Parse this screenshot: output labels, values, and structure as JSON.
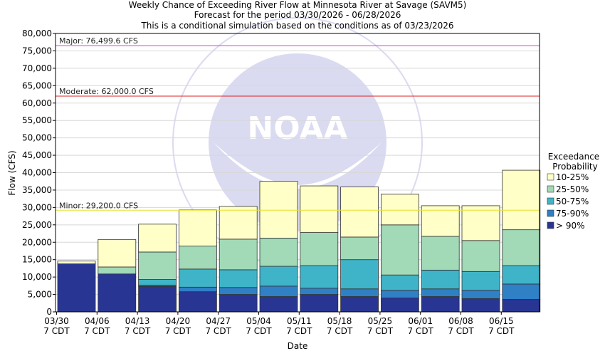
{
  "chart_data": {
    "type": "bar",
    "title": [
      "Weekly Chance of Exceeding River Flow at Minnesota River at Savage (SAVM5)",
      "Forecast for the period 03/30/2026 - 06/28/2026",
      "This is a conditional simulation based on the conditions as of 03/23/2026"
    ],
    "xlabel": "Date",
    "ylabel": "Flow (CFS)",
    "ylim": [
      0,
      80000
    ],
    "yticks": [
      "0",
      "5,000",
      "10,000",
      "15,000",
      "20,000",
      "25,000",
      "30,000",
      "35,000",
      "40,000",
      "45,000",
      "50,000",
      "55,000",
      "60,000",
      "65,000",
      "70,000",
      "75,000",
      "80,000"
    ],
    "categories": [
      [
        "03/30",
        "7 CDT"
      ],
      [
        "04/06",
        "7 CDT"
      ],
      [
        "04/13",
        "7 CDT"
      ],
      [
        "04/20",
        "7 CDT"
      ],
      [
        "04/27",
        "7 CDT"
      ],
      [
        "05/04",
        "7 CDT"
      ],
      [
        "05/11",
        "7 CDT"
      ],
      [
        "05/18",
        "7 CDT"
      ],
      [
        "05/25",
        "7 CDT"
      ],
      [
        "06/01",
        "7 CDT"
      ],
      [
        "06/08",
        "7 CDT"
      ],
      [
        "06/15",
        "7 CDT"
      ]
    ],
    "grid": true,
    "stacked": true,
    "legend": {
      "title": [
        "Exceedance",
        "Probability"
      ],
      "position": "right"
    },
    "series": [
      {
        "name": "> 90%",
        "color": "#283593",
        "values": [
          13800,
          10900,
          7300,
          5800,
          5000,
          4400,
          5000,
          4400,
          4000,
          4400,
          3800,
          3600
        ]
      },
      {
        "name": "75-90%",
        "color": "#2f80c4",
        "values": [
          0,
          0,
          400,
          1300,
          2000,
          3000,
          1800,
          2200,
          2200,
          2200,
          2400,
          4400
        ]
      },
      {
        "name": "50-75%",
        "color": "#3fb4c8",
        "values": [
          0,
          0,
          1600,
          5200,
          5100,
          5700,
          6500,
          8400,
          4400,
          5400,
          5400,
          5300
        ]
      },
      {
        "name": "25-50%",
        "color": "#a2d9b7",
        "values": [
          0,
          2000,
          7900,
          6600,
          8800,
          8100,
          9500,
          6500,
          14400,
          9700,
          8900,
          10300
        ]
      },
      {
        "name": "10-25%",
        "color": "#ffffc7",
        "values": [
          800,
          7900,
          8000,
          10400,
          9400,
          16300,
          13400,
          14400,
          8800,
          8800,
          10000,
          17100
        ]
      }
    ],
    "thresholds": [
      {
        "label": "Major: 76,499.6 CFS",
        "value": 76499.6,
        "color": "#cc44cc"
      },
      {
        "label": "Moderate: 62,000.0 CFS",
        "value": 62000,
        "color": "#dd2222"
      },
      {
        "label": "Minor: 29,200.0 CFS",
        "value": 29200,
        "color": "#e6e033"
      }
    ],
    "watermark": "NOAA"
  }
}
